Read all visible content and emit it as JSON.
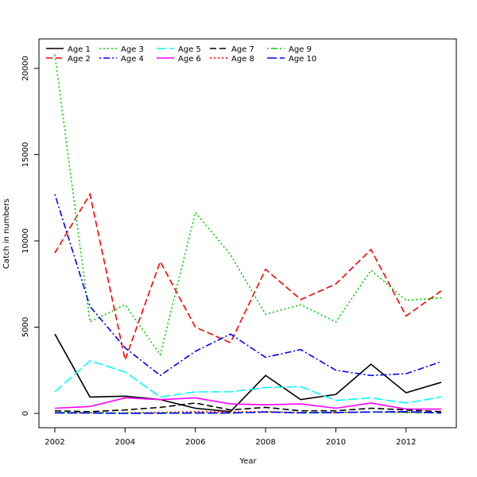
{
  "chart_data": {
    "type": "line",
    "title": "",
    "xlabel": "Year",
    "ylabel": "Catch in numbers",
    "x": [
      2002,
      2003,
      2004,
      2005,
      2006,
      2007,
      2008,
      2009,
      2010,
      2011,
      2012,
      2013
    ],
    "xlim": [
      2002,
      2013
    ],
    "ylim": [
      -800,
      22000
    ],
    "x_ticks": [
      2002,
      2004,
      2006,
      2008,
      2010,
      2012
    ],
    "y_ticks": [
      0,
      5000,
      10000,
      15000,
      20000
    ],
    "grid": false,
    "legend_position": "top-left",
    "series": [
      {
        "name": "Age 1",
        "color": "#000000",
        "dash": "solid",
        "values": [
          4600,
          950,
          1000,
          800,
          300,
          100,
          2200,
          800,
          1100,
          2850,
          1200,
          1800
        ]
      },
      {
        "name": "Age 2",
        "color": "#ff0000",
        "dash": "dashed",
        "values": [
          9300,
          12700,
          3100,
          8800,
          5000,
          4100,
          8350,
          6600,
          7500,
          9500,
          5650,
          7100
        ]
      },
      {
        "name": "Age 3",
        "color": "#00cd00",
        "dash": "dotted",
        "values": [
          20800,
          5300,
          6300,
          3400,
          11650,
          9200,
          5750,
          6300,
          5300,
          8300,
          6550,
          6700
        ]
      },
      {
        "name": "Age 4",
        "color": "#0000ff",
        "dash": "dotdash",
        "values": [
          12700,
          6200,
          3800,
          2200,
          3600,
          4600,
          3250,
          3700,
          2500,
          2200,
          2300,
          3000
        ]
      },
      {
        "name": "Age 5",
        "color": "#00ffff",
        "dash": "longdash",
        "values": [
          1250,
          3050,
          2400,
          950,
          1250,
          1250,
          1500,
          1550,
          750,
          900,
          600,
          950
        ]
      },
      {
        "name": "Age 6",
        "color": "#ff00ff",
        "dash": "solid",
        "values": [
          300,
          400,
          900,
          800,
          900,
          550,
          500,
          550,
          300,
          600,
          250,
          250
        ]
      },
      {
        "name": "Age 7",
        "color": "#000000",
        "dash": "dashed",
        "values": [
          150,
          100,
          200,
          350,
          600,
          200,
          350,
          150,
          150,
          300,
          200,
          100
        ]
      },
      {
        "name": "Age 8",
        "color": "#ff0000",
        "dash": "dotted",
        "values": [
          50,
          30,
          30,
          50,
          100,
          80,
          100,
          50,
          50,
          80,
          80,
          30
        ]
      },
      {
        "name": "Age 9",
        "color": "#00cd00",
        "dash": "dotdash",
        "values": [
          50,
          50,
          20,
          30,
          30,
          30,
          80,
          50,
          50,
          80,
          50,
          50
        ]
      },
      {
        "name": "Age 10",
        "color": "#0000ff",
        "dash": "longdash",
        "values": [
          30,
          20,
          0,
          10,
          20,
          20,
          80,
          30,
          50,
          80,
          100,
          20
        ]
      }
    ]
  }
}
